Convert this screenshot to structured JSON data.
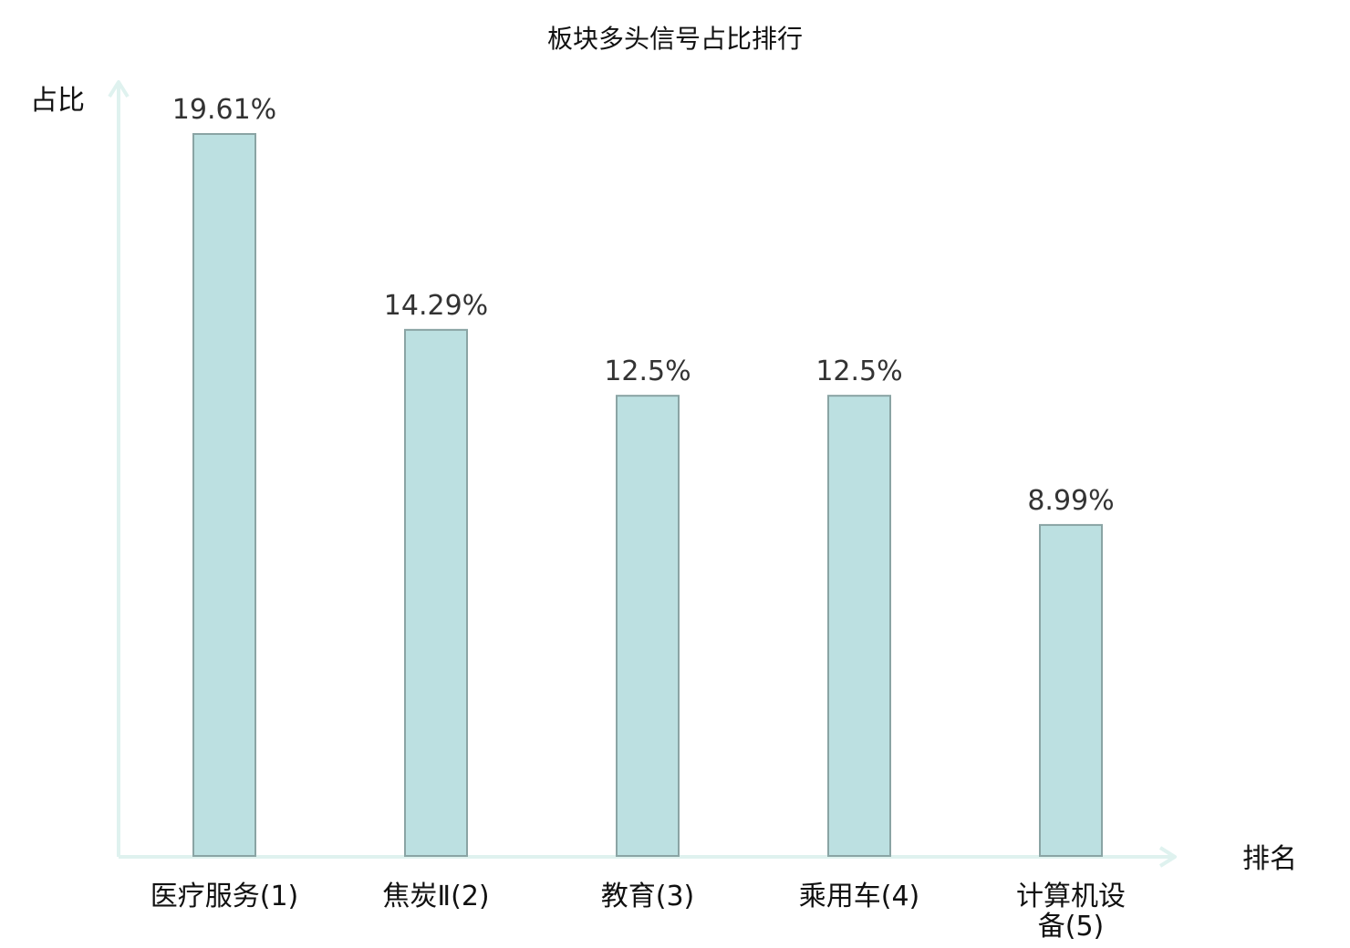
{
  "chart_data": {
    "type": "bar",
    "title": "板块多头信号占比排行",
    "xlabel": "排名",
    "ylabel": "占比",
    "categories": [
      "医疗服务(1)",
      "焦炭Ⅱ(2)",
      "教育(3)",
      "乘用车(4)",
      "计算机设备(5)"
    ],
    "category_lines": [
      [
        "医疗服务(1)"
      ],
      [
        "焦炭Ⅱ(2)"
      ],
      [
        "教育(3)"
      ],
      [
        "乘用车(4)"
      ],
      [
        "计算机设",
        "备(5)"
      ]
    ],
    "values": [
      19.61,
      14.29,
      12.5,
      12.5,
      8.99
    ],
    "value_labels": [
      "19.61%",
      "14.29%",
      "12.5%",
      "12.5%",
      "8.99%"
    ],
    "ylim": [
      0,
      19.61
    ],
    "grid": false,
    "highlight_index": 0,
    "colors": {
      "bar_fill": "#bce0e1",
      "bar_stroke": "#8aa4a4",
      "axis": "#dff2ef",
      "highlight_label": "#e01b1b",
      "label": "#111111",
      "value_label": "#333333"
    }
  }
}
